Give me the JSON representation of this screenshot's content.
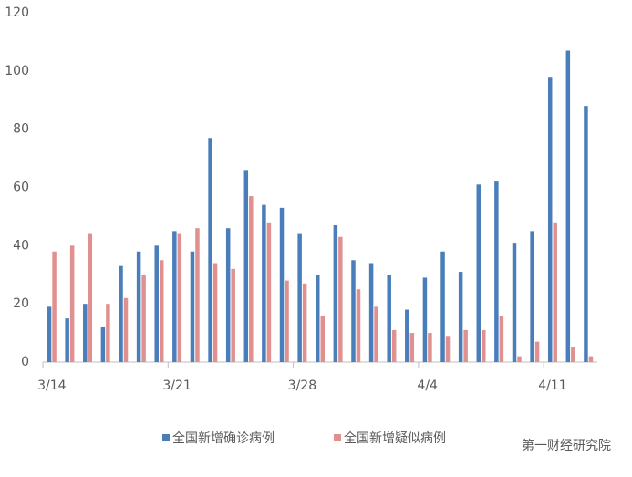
{
  "chart_data": {
    "type": "bar",
    "categories": [
      "3/14",
      null,
      null,
      null,
      null,
      null,
      null,
      "3/21",
      null,
      null,
      null,
      null,
      null,
      null,
      "3/28",
      null,
      null,
      null,
      null,
      null,
      null,
      "4/4",
      null,
      null,
      null,
      null,
      null,
      null,
      "4/11",
      null,
      null
    ],
    "series": [
      {
        "name": "全国新增确诊病例",
        "color": "#4a7ebb",
        "values": [
          19,
          15,
          20,
          12,
          33,
          38,
          40,
          45,
          38,
          77,
          46,
          66,
          54,
          53,
          44,
          30,
          47,
          35,
          34,
          30,
          18,
          29,
          38,
          31,
          61,
          62,
          41,
          45,
          98,
          107,
          88
        ]
      },
      {
        "name": "全国新增疑似病例",
        "color": "#e0918f",
        "values": [
          38,
          40,
          44,
          20,
          22,
          30,
          35,
          44,
          46,
          34,
          32,
          57,
          48,
          28,
          27,
          16,
          43,
          25,
          19,
          11,
          10,
          10,
          9,
          11,
          11,
          16,
          2,
          7,
          48,
          5,
          2
        ]
      }
    ],
    "ylim": [
      0,
      120
    ],
    "yticks": [
      0,
      20,
      40,
      60,
      80,
      100,
      120
    ],
    "legend": "bottom",
    "watermark": "第一财经研究院"
  }
}
